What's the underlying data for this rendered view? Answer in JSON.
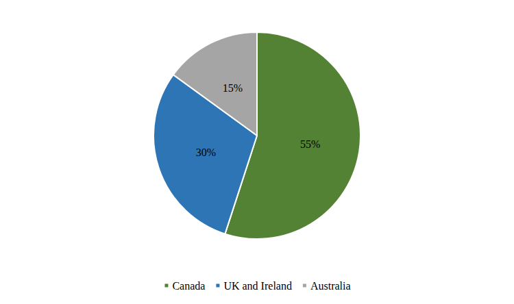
{
  "chart_data": {
    "type": "pie",
    "categories": [
      "Canada",
      "UK and Ireland",
      "Australia"
    ],
    "values": [
      55,
      30,
      15
    ],
    "value_labels": [
      "55%",
      "30%",
      "15%"
    ],
    "colors": [
      "#548235",
      "#2e75b6",
      "#a5a5a5"
    ],
    "data_labels": true,
    "legend": "bottom"
  }
}
